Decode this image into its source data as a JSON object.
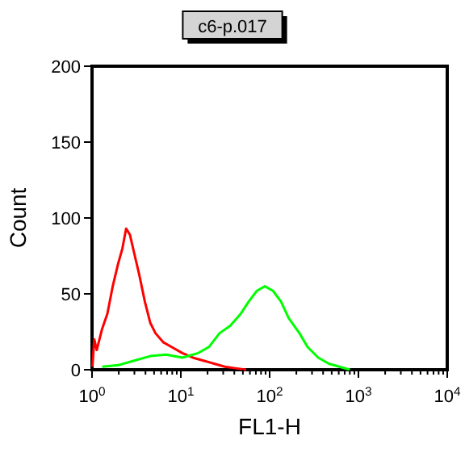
{
  "chart_data": {
    "type": "line",
    "title": "c6-p.017",
    "xlabel": "FL1-H",
    "ylabel": "Count",
    "log": "x",
    "grid": false,
    "marker": "none",
    "line_style": "solid",
    "xlim": [
      1,
      10000
    ],
    "ylim": [
      0,
      200
    ],
    "xticks": [
      {
        "value": 1,
        "label": "10$^{0}$"
      },
      {
        "value": 2,
        "label": null
      },
      {
        "value": 3,
        "label": null
      },
      {
        "value": 4,
        "label": null
      },
      {
        "value": 5,
        "label": null
      },
      {
        "value": 6,
        "label": null
      },
      {
        "value": 7,
        "label": null
      },
      {
        "value": 8,
        "label": null
      },
      {
        "value": 9,
        "label": null
      },
      {
        "value": 10,
        "label": "10$^{1}$"
      },
      {
        "value": 20,
        "label": null
      },
      {
        "value": 30,
        "label": null
      },
      {
        "value": 40,
        "label": null
      },
      {
        "value": 50,
        "label": null
      },
      {
        "value": 60,
        "label": null
      },
      {
        "value": 70,
        "label": null
      },
      {
        "value": 80,
        "label": null
      },
      {
        "value": 90,
        "label": null
      },
      {
        "value": 100,
        "label": "10$^{2}$"
      },
      {
        "value": 200,
        "label": null
      },
      {
        "value": 300,
        "label": null
      },
      {
        "value": 400,
        "label": null
      },
      {
        "value": 500,
        "label": null
      },
      {
        "value": 600,
        "label": null
      },
      {
        "value": 700,
        "label": null
      },
      {
        "value": 800,
        "label": null
      },
      {
        "value": 900,
        "label": null
      },
      {
        "value": 1000,
        "label": "10$^{3}$"
      },
      {
        "value": 2000,
        "label": null
      },
      {
        "value": 3000,
        "label": null
      },
      {
        "value": 4000,
        "label": null
      },
      {
        "value": 5000,
        "label": null
      },
      {
        "value": 6000,
        "label": null
      },
      {
        "value": 7000,
        "label": null
      },
      {
        "value": 8000,
        "label": null
      },
      {
        "value": 9000,
        "label": null
      },
      {
        "value": 10000,
        "label": "10$^{4}$"
      }
    ],
    "yticks": [
      0,
      50,
      100,
      150,
      200
    ],
    "series": [
      {
        "color": "#ff0000",
        "x": [
          1.01,
          1.06,
          1.13,
          1.3,
          1.49,
          1.71,
          1.97,
          2.2,
          2.42,
          2.67,
          2.98,
          3.42,
          3.93,
          4.52,
          5.19,
          6.38,
          7.85,
          10.4,
          13.6,
          18,
          23.7,
          31.3,
          41.3,
          54.4
        ],
        "values": [
          2,
          20,
          13,
          27,
          37,
          55,
          70,
          80,
          93,
          89,
          77,
          62,
          45,
          31,
          24,
          18,
          15,
          11,
          8,
          6,
          4,
          2,
          1,
          0
        ]
      },
      {
        "color": "#00ff00",
        "x": [
          1.3,
          1.97,
          2.98,
          4.52,
          6.84,
          10.4,
          15.7,
          20.7,
          27.2,
          36,
          47.4,
          58.3,
          71.8,
          88.3,
          109,
          134,
          164,
          217,
          267,
          352,
          464,
          611,
          805
        ],
        "values": [
          2,
          3,
          6,
          9,
          10,
          8,
          11,
          15,
          24,
          29,
          37,
          45,
          52,
          55,
          52,
          45,
          34,
          24,
          15,
          8,
          4,
          2,
          0
        ]
      }
    ]
  }
}
